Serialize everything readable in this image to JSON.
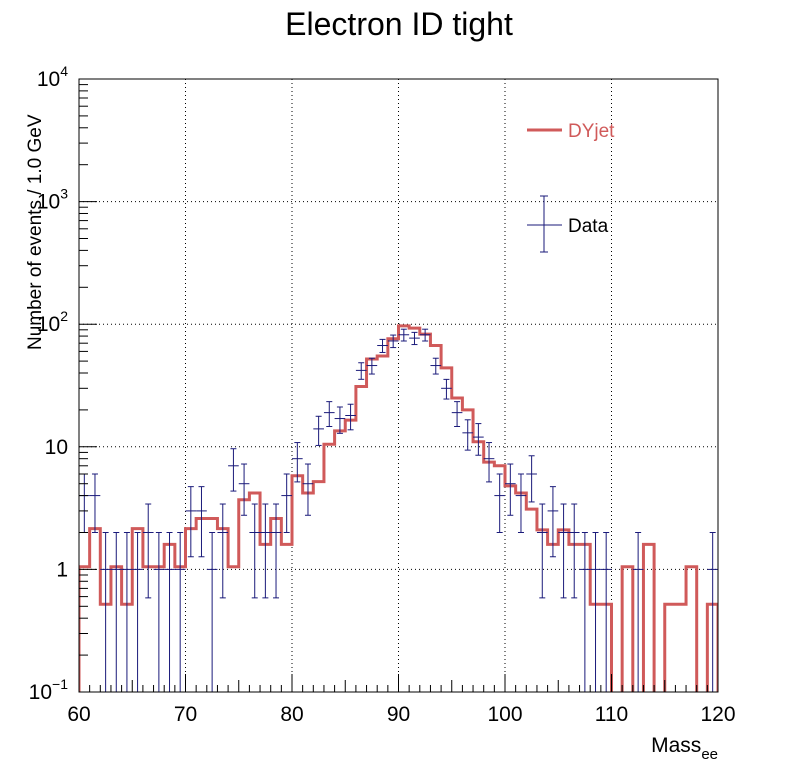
{
  "chart_data": {
    "type": "histogram",
    "title": "Electron ID tight",
    "xlabel": "Mass",
    "xlabel_sub": "ee",
    "ylabel": "Number of events / 1.0 GeV",
    "xlim": [
      60,
      120
    ],
    "ylim": [
      0.1,
      10000
    ],
    "y_scale": "log",
    "grid": true,
    "legend_position": "top-right",
    "x_ticks": [
      {
        "value": 60,
        "label": "60"
      },
      {
        "value": 70,
        "label": "70"
      },
      {
        "value": 80,
        "label": "80"
      },
      {
        "value": 90,
        "label": "90"
      },
      {
        "value": 100,
        "label": "100"
      },
      {
        "value": 110,
        "label": "110"
      },
      {
        "value": 120,
        "label": "120"
      }
    ],
    "y_ticks": [
      {
        "value": 0.1,
        "base": "10",
        "exp": "−1"
      },
      {
        "value": 1,
        "base": "1",
        "exp": ""
      },
      {
        "value": 10,
        "base": "10",
        "exp": ""
      },
      {
        "value": 100,
        "base": "10",
        "exp": "2"
      },
      {
        "value": 1000,
        "base": "10",
        "exp": "3"
      },
      {
        "value": 10000,
        "base": "10",
        "exp": "4"
      }
    ],
    "bin_edges_start": 60,
    "bin_width": 1,
    "series": [
      {
        "name": "DYjet",
        "kind": "histogram",
        "color": "#d05a5a",
        "values": [
          1.05,
          2.15,
          0.52,
          1.05,
          0.52,
          2.15,
          1.05,
          1.05,
          1.6,
          1.05,
          2.15,
          2.6,
          2.6,
          2.15,
          1.05,
          3.7,
          4.2,
          1.6,
          2.6,
          1.6,
          5.8,
          4.2,
          5.2,
          10.5,
          13.5,
          16.5,
          31,
          52,
          55,
          76,
          97,
          93,
          83,
          67,
          44,
          25,
          20,
          11,
          7.5,
          7,
          4.8,
          4.2,
          3.1,
          2.1,
          1.6,
          2.1,
          1.6,
          1.6,
          0.52,
          0.52,
          0.08,
          1.05,
          0.08,
          1.6,
          0.08,
          0.52,
          0.52,
          1.05,
          0.08,
          0.52
        ]
      },
      {
        "name": "Data",
        "kind": "points",
        "color": "#1a1a7a",
        "values": [
          4,
          4,
          1,
          1,
          1,
          1,
          2,
          1,
          1,
          1,
          3,
          3,
          1,
          2,
          7,
          5,
          2,
          2,
          2,
          4,
          8,
          5,
          14,
          19,
          17,
          18,
          42,
          46,
          67,
          73,
          82,
          77,
          82,
          46,
          30,
          19,
          13,
          12,
          8,
          4,
          5,
          4,
          6,
          2,
          3,
          2,
          2,
          1,
          1,
          1,
          0,
          0,
          1,
          0,
          0,
          0,
          0,
          0,
          0,
          1
        ]
      }
    ]
  }
}
